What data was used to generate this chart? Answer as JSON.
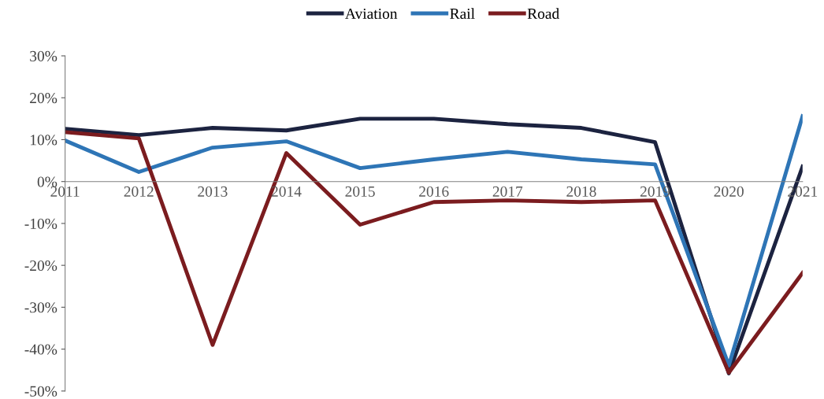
{
  "chart_data": {
    "type": "line",
    "categories": [
      "2011",
      "2012",
      "2013",
      "2014",
      "2015",
      "2016",
      "2017",
      "2018",
      "2019",
      "2020",
      "2021"
    ],
    "series": [
      {
        "name": "Aviation",
        "color": "#1c2340",
        "values": [
          12.6,
          11.1,
          12.8,
          12.2,
          15.0,
          15.0,
          13.7,
          12.8,
          9.4,
          -45.8,
          3.6
        ]
      },
      {
        "name": "Rail",
        "color": "#2e75b6",
        "values": [
          9.8,
          2.3,
          8.1,
          9.6,
          3.2,
          5.3,
          7.1,
          5.3,
          4.1,
          -43.9,
          15.6
        ]
      },
      {
        "name": "Road",
        "color": "#7b1c1f",
        "values": [
          11.8,
          10.3,
          -39.0,
          6.8,
          -10.3,
          -4.9,
          -4.5,
          -4.9,
          -4.5,
          -45.6,
          -21.8
        ]
      }
    ],
    "ylim": [
      -50,
      30
    ],
    "yticks": [
      {
        "value": -50,
        "label": "-50%"
      },
      {
        "value": -40,
        "label": "-40%"
      },
      {
        "value": -30,
        "label": "-30%"
      },
      {
        "value": -20,
        "label": "-20%"
      },
      {
        "value": -10,
        "label": "-10%"
      },
      {
        "value": 0,
        "label": "0%"
      },
      {
        "value": 10,
        "label": "10%"
      },
      {
        "value": 20,
        "label": "20%"
      },
      {
        "value": 30,
        "label": "30%"
      }
    ],
    "grid": false,
    "legend": "top",
    "marker": "none",
    "line_style": "solid"
  }
}
